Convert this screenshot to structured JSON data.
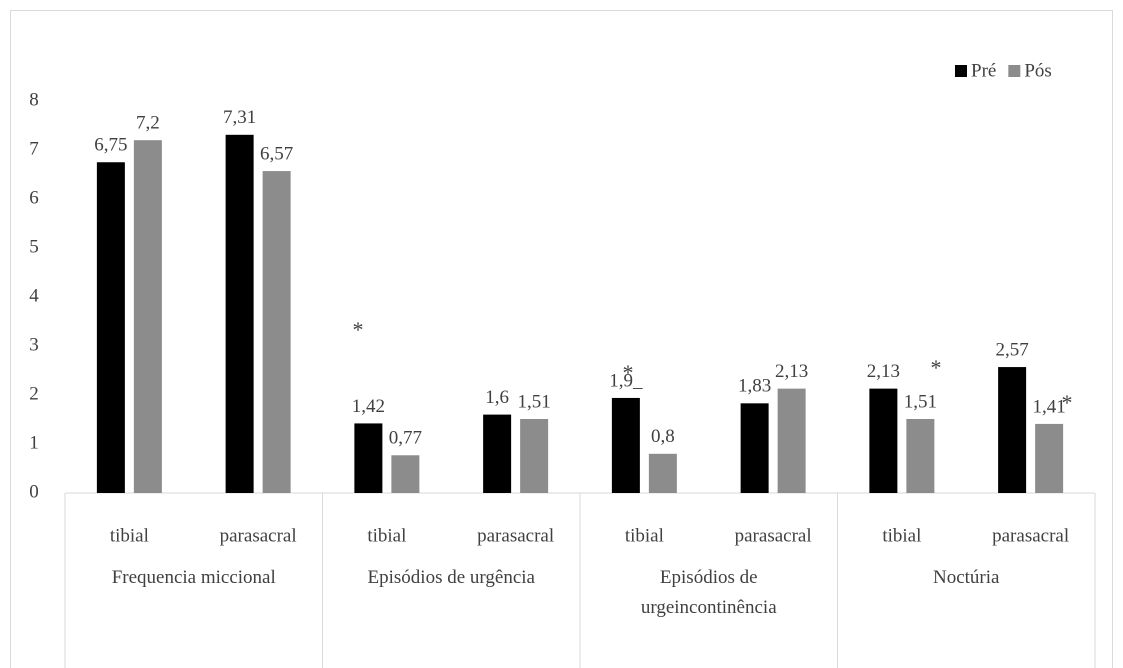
{
  "chart_data": {
    "type": "bar",
    "groups": [
      "Frequencia miccional",
      "Episódios de urgência",
      "Episódios de urgeincontinência",
      "Noctúria"
    ],
    "categories": [
      "tibial",
      "parasacral",
      "tibial",
      "parasacral",
      "tibial",
      "parasacral",
      "tibial",
      "parasacral"
    ],
    "series": [
      {
        "name": "Pré",
        "color": "#000000",
        "values": [
          6.75,
          7.31,
          1.42,
          1.6,
          1.94,
          1.83,
          2.13,
          2.57
        ],
        "value_labels": [
          "6,75",
          "7,31",
          "1,42",
          "1,6",
          "1,9_",
          "1,83",
          "2,13",
          "2,57"
        ]
      },
      {
        "name": "Pós",
        "color": "#8c8c8c",
        "values": [
          7.2,
          6.57,
          0.77,
          1.51,
          0.8,
          2.13,
          1.51,
          1.41
        ],
        "value_labels": [
          "7,2",
          "6,57",
          "0,77",
          "1,51",
          "0,8",
          "2,13",
          "1,51",
          "1,41"
        ]
      }
    ],
    "annotations": [
      "*",
      "*",
      "*",
      "*"
    ],
    "ylim": [
      0,
      8
    ],
    "yticks": [
      0,
      1,
      2,
      3,
      4,
      5,
      6,
      7,
      8
    ],
    "legend": "top-right"
  }
}
